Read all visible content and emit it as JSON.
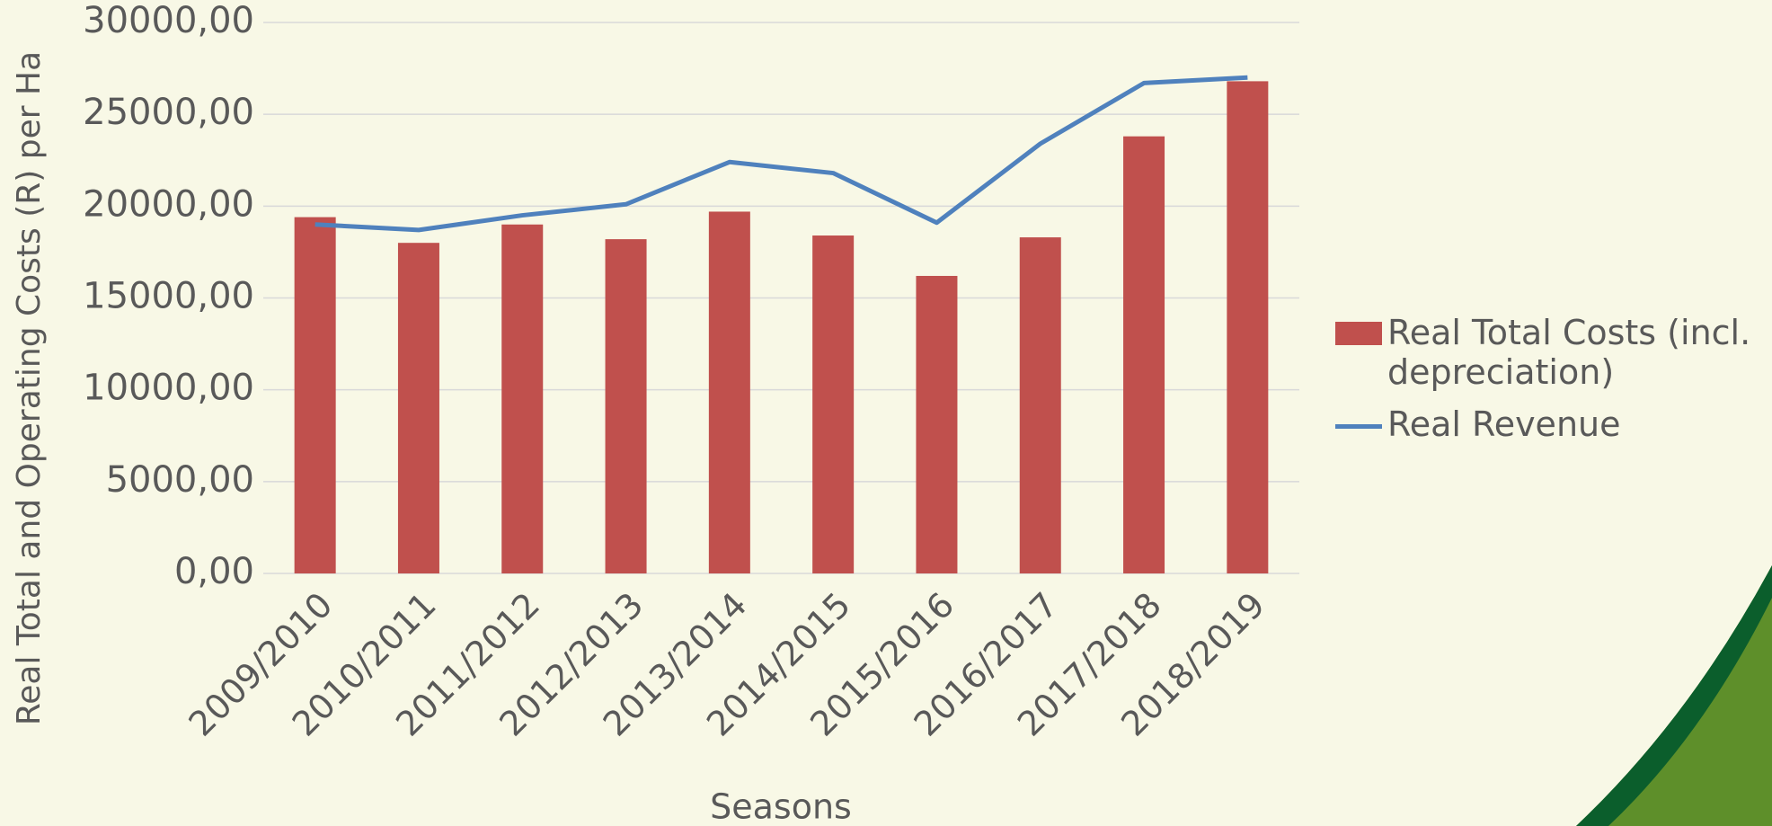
{
  "chart_data": {
    "type": "bar_line",
    "x_label": "Seasons",
    "y_label": "Real Total and Operating Costs (R) per Ha",
    "categories": [
      "2009/2010",
      "2010/2011",
      "2011/2012",
      "2012/2013",
      "2013/2014",
      "2014/2015",
      "2015/2016",
      "2016/2017",
      "2017/2018",
      "2018/2019"
    ],
    "series": [
      {
        "name": "Real Total Costs (incl. depreciation)",
        "type": "bar",
        "color": "#c0504d",
        "values": [
          19400,
          18000,
          19000,
          18200,
          19700,
          18400,
          16200,
          18300,
          23800,
          26800
        ]
      },
      {
        "name": "Real Revenue",
        "type": "line",
        "color": "#4f81bd",
        "values": [
          19000,
          18700,
          19500,
          20100,
          22400,
          21800,
          19100,
          23400,
          26700,
          27000
        ]
      }
    ],
    "ylim": [
      0,
      30000
    ],
    "yticks": [
      {
        "value": 0,
        "label": "0,00"
      },
      {
        "value": 5000,
        "label": "5000,00"
      },
      {
        "value": 10000,
        "label": "10000,00"
      },
      {
        "value": 15000,
        "label": "15000,00"
      },
      {
        "value": 20000,
        "label": "20000,00"
      },
      {
        "value": 25000,
        "label": "25000,00"
      },
      {
        "value": 30000,
        "label": "30000,00"
      }
    ],
    "grid": true,
    "legend": "right"
  }
}
